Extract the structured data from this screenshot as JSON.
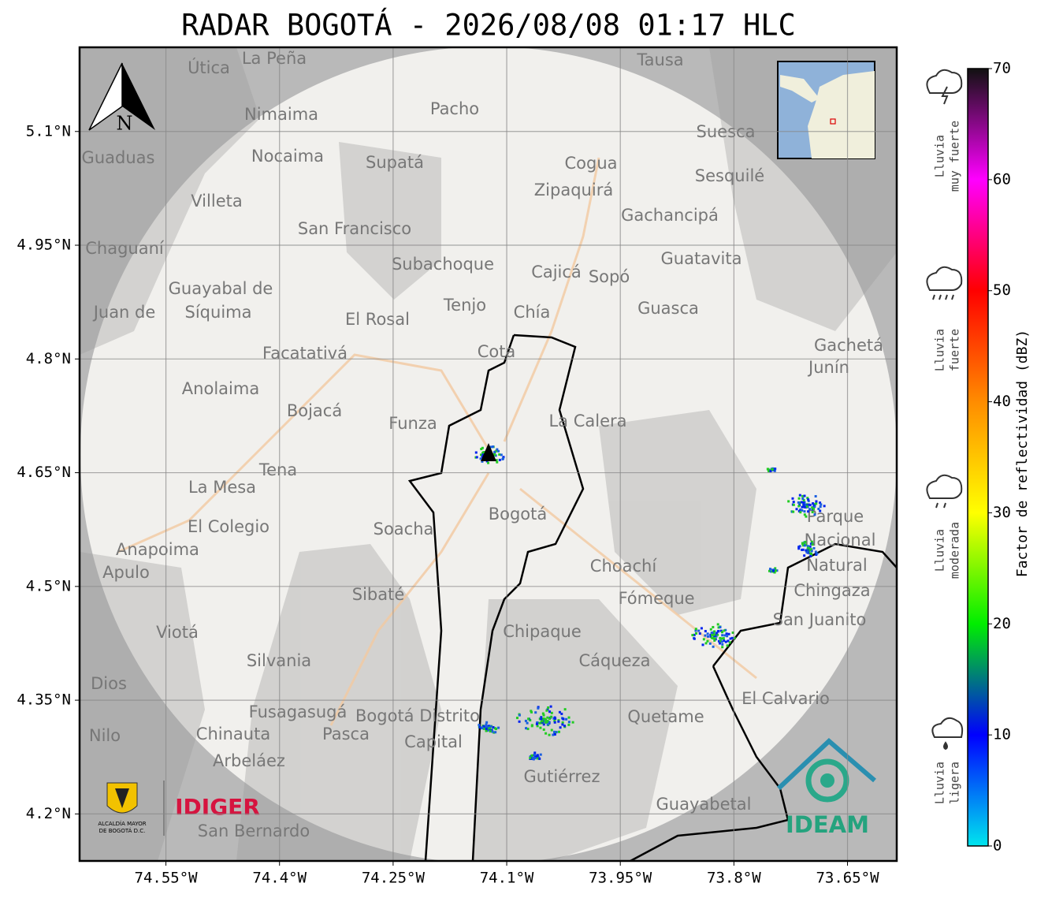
{
  "title": "RADAR BOGOTÁ - 2026/08/08 01:17 HLC",
  "map": {
    "xlim": [
      -74.664,
      -73.585
    ],
    "ylim": [
      4.138,
      5.211
    ],
    "xticks": [
      {
        "value": -74.55,
        "label": "74.55°W"
      },
      {
        "value": -74.4,
        "label": "74.4°W"
      },
      {
        "value": -74.25,
        "label": "74.25°W"
      },
      {
        "value": -74.1,
        "label": "74.1°W"
      },
      {
        "value": -73.95,
        "label": "73.95°W"
      },
      {
        "value": -73.8,
        "label": "73.8°W"
      },
      {
        "value": -73.65,
        "label": "73.65°W"
      }
    ],
    "yticks": [
      {
        "value": 5.1,
        "label": "5.1°N"
      },
      {
        "value": 4.95,
        "label": "4.95°N"
      },
      {
        "value": 4.8,
        "label": "4.8°N"
      },
      {
        "value": 4.65,
        "label": "4.65°N"
      },
      {
        "value": 4.5,
        "label": "4.5°N"
      },
      {
        "value": 4.35,
        "label": "4.35°N"
      },
      {
        "value": 4.2,
        "label": "4.2°N"
      }
    ],
    "grid": true,
    "north_label": "N",
    "places": [
      "La Peña",
      "Útica",
      "Tausa",
      "Pacho",
      "Nimaima",
      "Guaduas",
      "Nocaima",
      "Supatá",
      "Cogua",
      "Suesca",
      "Sesquilé",
      "Zipaquirá",
      "Villeta",
      "Gachancipá",
      "San Francisco",
      "Chaguaní",
      "Guatavita",
      "Subachoque",
      "Cajicá",
      "Sopó",
      "Guayabal de",
      "Síquima",
      "Juan de",
      "Tenjo",
      "Chía",
      "Guasca",
      "El Rosal",
      "Facatativá",
      "Cota",
      "Gachetá",
      "Junín",
      "Anolaima",
      "Bojacá",
      "Funza",
      "La Calera",
      "Tena",
      "La Mesa",
      "Bogotá",
      "Soacha",
      "El Colegio",
      "Parque",
      "Nacional",
      "Natural",
      "Chingaza",
      "Anapoima",
      "Apulo",
      "Choachí",
      "Sibaté",
      "Fómeque",
      "San Juanito",
      "Viotá",
      "Chipaque",
      "Silvania",
      "Cáqueza",
      "Dios",
      "El Calvario",
      "Fusagasugá",
      "Bogotá Distrito",
      "Capital",
      "Quetame",
      "Nilo",
      "Chinauta",
      "Pasca",
      "Arbeláez",
      "Gutiérrez",
      "Guayabetal",
      "San Bernardo"
    ]
  },
  "colorbar": {
    "label": "Factor de reflectividad (dBZ)",
    "lim": [
      0,
      70
    ],
    "ticks": [
      0,
      10,
      20,
      30,
      40,
      50,
      60,
      70
    ],
    "colors": [
      "#00e5ee",
      "#0000ff",
      "#00ee00",
      "#ffff00",
      "#ff8c00",
      "#ff0000",
      "#ff00ff",
      "#111111"
    ]
  },
  "rain_levels": [
    [
      "Lluvia",
      "muy fuerte"
    ],
    [
      "Lluvia",
      "fuerte"
    ],
    [
      "Lluvia",
      "moderada"
    ],
    [
      "Lluvia",
      "ligera"
    ]
  ],
  "logos": {
    "alcaldia": [
      "ALCALDÍA MAYOR",
      "DE BOGOTÁ D.C."
    ],
    "idiger": "IDIGER",
    "ideam": "IDEAM"
  }
}
